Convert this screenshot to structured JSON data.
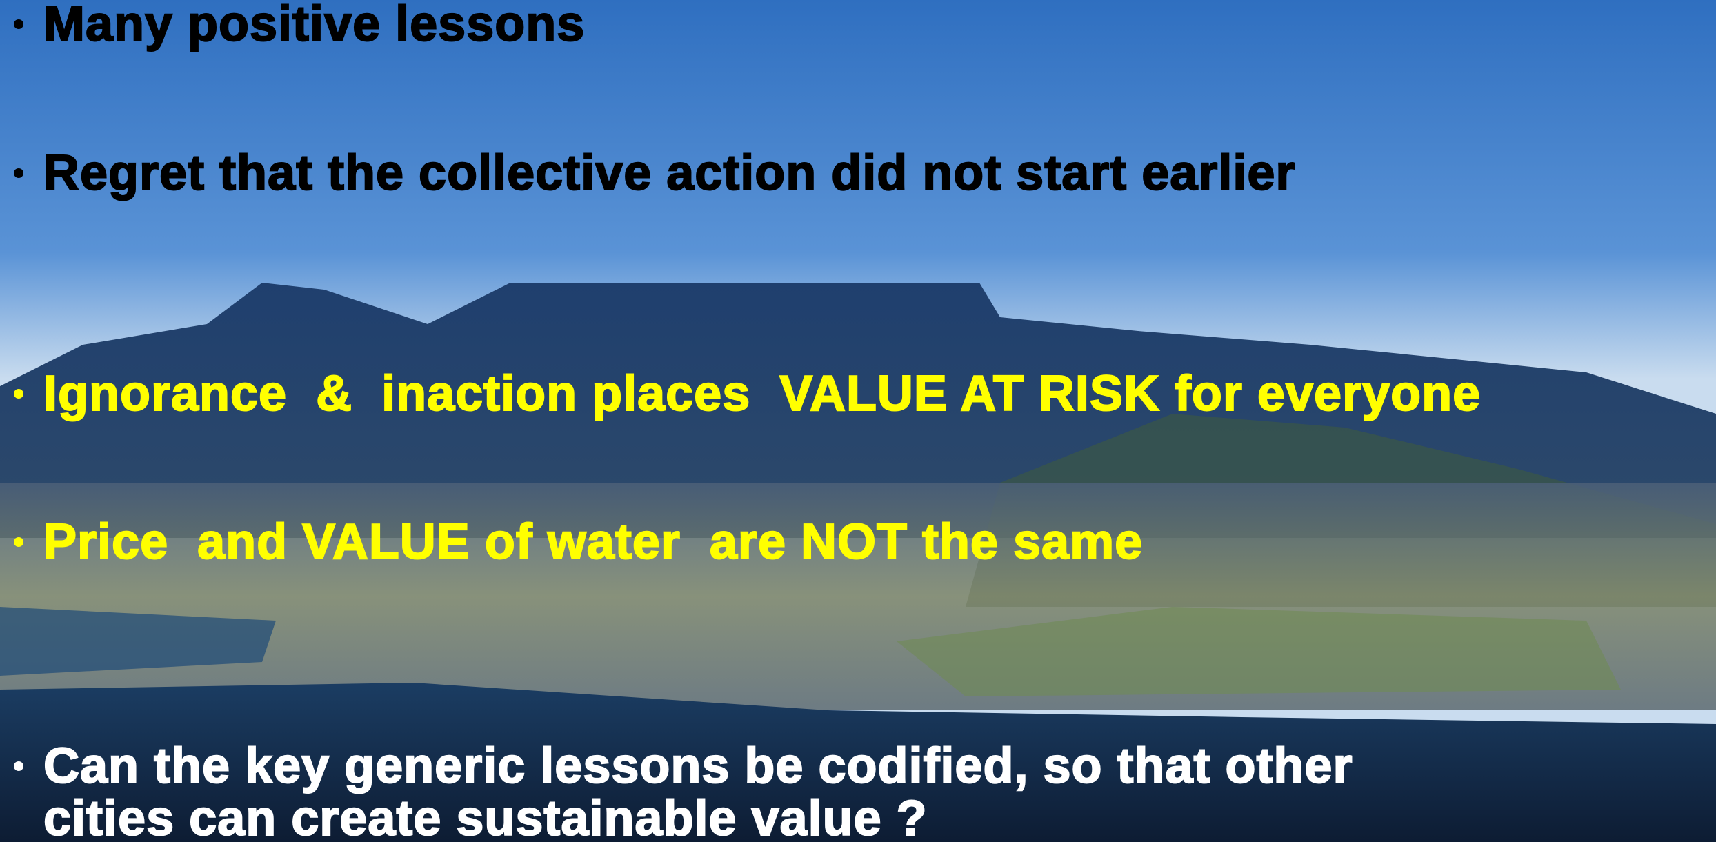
{
  "slide": {
    "bullets": [
      {
        "lines": [
          "Many positive lessons"
        ]
      },
      {
        "lines": [
          "Regret that the collective action did not start earlier"
        ]
      },
      {
        "lines": [
          "Ignorance  &  inaction places  VALUE AT RISK for everyone"
        ]
      },
      {
        "lines": [
          "Price  and VALUE of water  are NOT the same"
        ]
      },
      {
        "lines": [
          "Can the key generic lessons be codified, so that other",
          "cities can create sustainable value ?"
        ]
      }
    ]
  }
}
